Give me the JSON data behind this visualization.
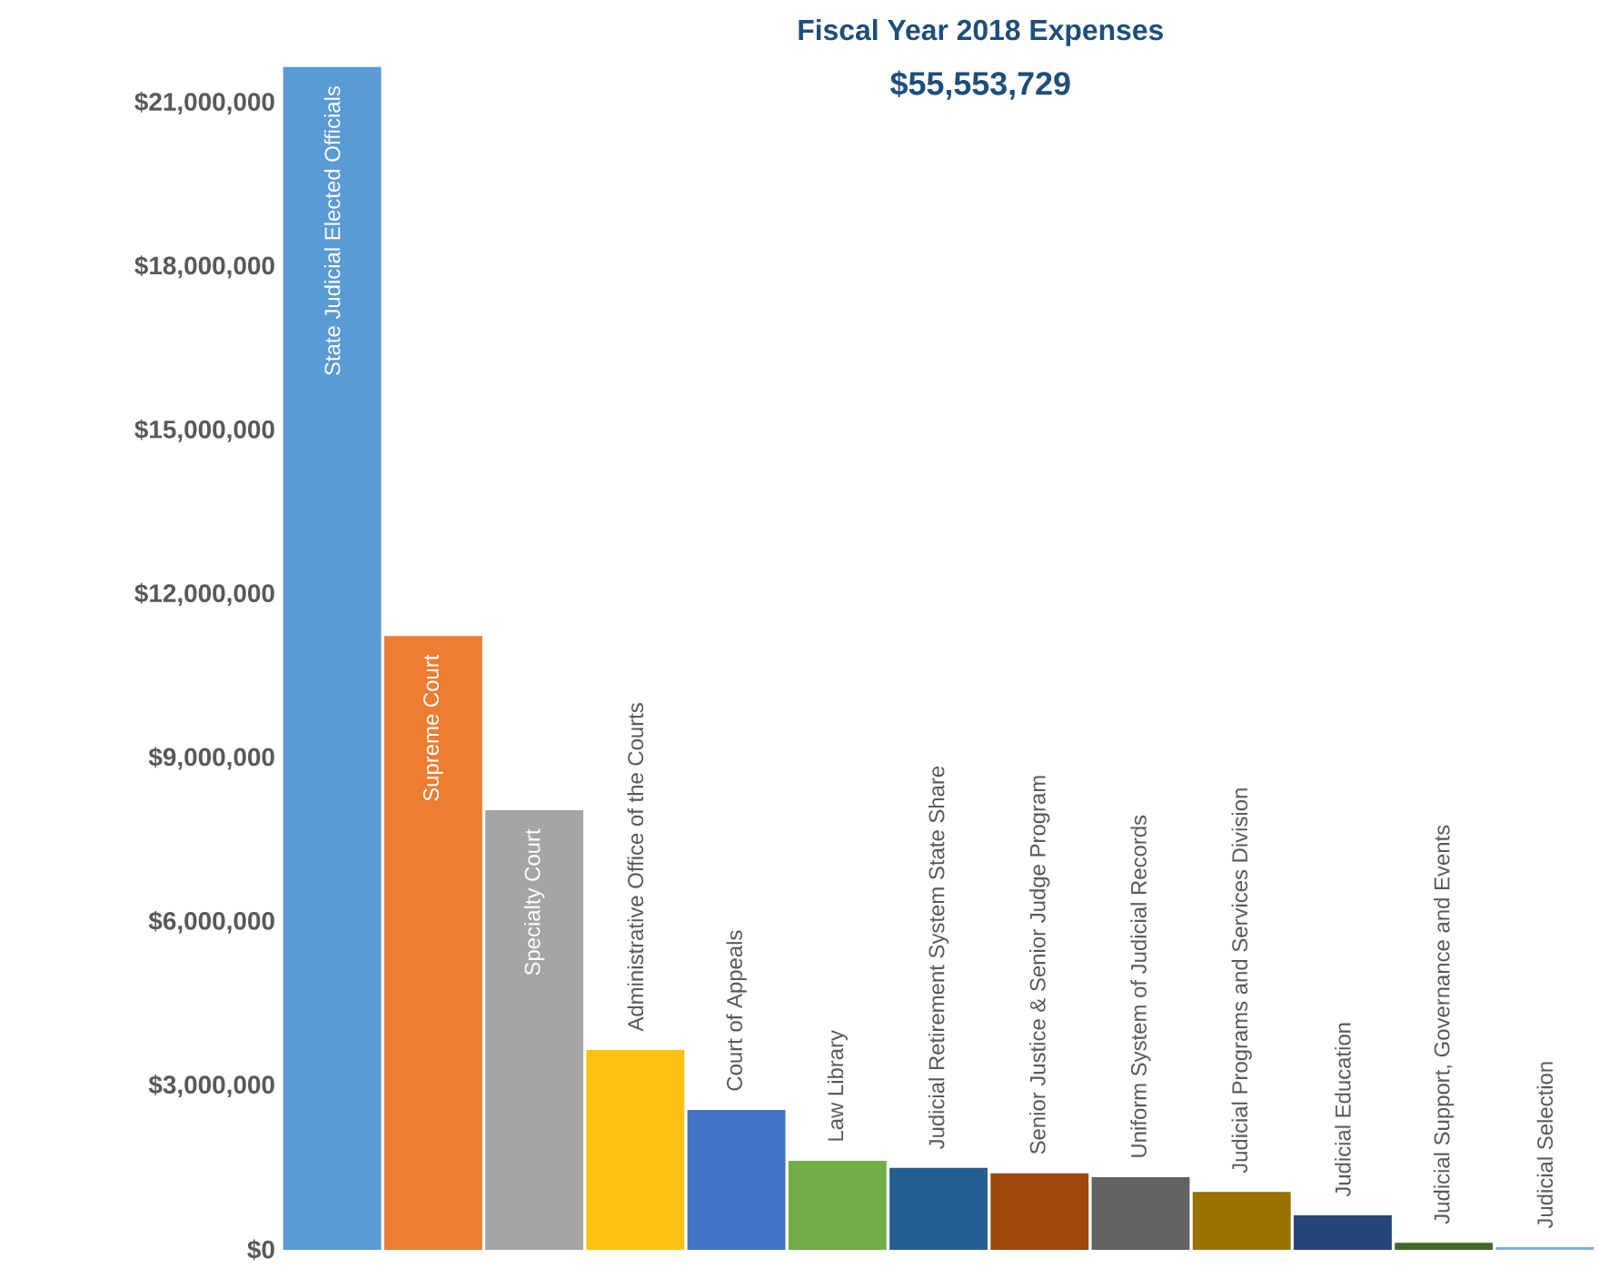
{
  "chart_data": {
    "type": "bar",
    "title": "Fiscal Year 2018 Expenses",
    "subtitle": "$55,553,729",
    "categories": [
      "State Judicial Elected Officials",
      "Supreme Court",
      "Specialty Court",
      "Administrative Office of the Courts",
      "Court of Appeals",
      "Law Library",
      "Judicial Retirement System State Share",
      "Senior Justice & Senior Judge Program",
      "Uniform System of Judicial Records",
      "Judicial Programs and Services Division",
      "Judicial Education",
      "Judicial Support, Governance and Events",
      "Judicial Selection"
    ],
    "values": [
      21660000,
      11240000,
      8050000,
      3660000,
      2560000,
      1630000,
      1500000,
      1400000,
      1330000,
      1060000,
      630000,
      130000,
      50000
    ],
    "colors": [
      "#5b9bd5",
      "#ed7d31",
      "#a5a5a5",
      "#fcc010",
      "#4472c4",
      "#70ad47",
      "#255e91",
      "#9e480e",
      "#636363",
      "#997300",
      "#264478",
      "#43682b",
      "#7cafdd"
    ],
    "yticks": [
      {
        "value": 0,
        "label": "$0"
      },
      {
        "value": 3000000,
        "label": "$3,000,000"
      },
      {
        "value": 6000000,
        "label": "$6,000,000"
      },
      {
        "value": 9000000,
        "label": "$9,000,000"
      },
      {
        "value": 12000000,
        "label": "$12,000,000"
      },
      {
        "value": 15000000,
        "label": "$15,000,000"
      },
      {
        "value": 18000000,
        "label": "$18,000,000"
      },
      {
        "value": 21000000,
        "label": "$21,000,000"
      }
    ],
    "ylim": [
      0,
      21660000
    ],
    "grid": false
  }
}
